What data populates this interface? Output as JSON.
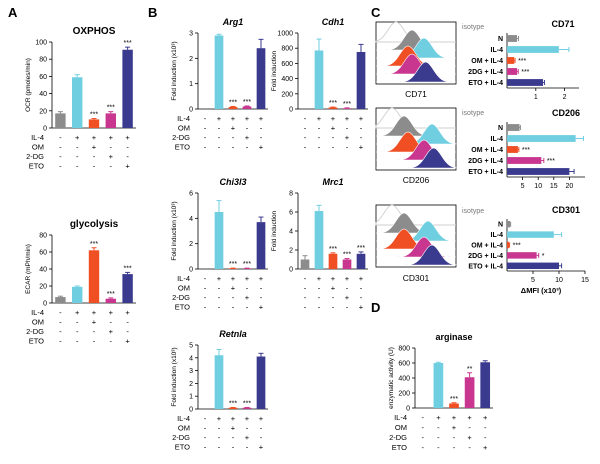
{
  "colors": {
    "gray": "#8c8c8c",
    "cyan": "#6fcfe0",
    "orange": "#f04e23",
    "magenta": "#c8368f",
    "navy": "#3a3a8f",
    "outline": "#cfcfcf"
  },
  "treatments": {
    "row_labels": [
      "IL-4",
      "OM",
      "2-DG",
      "ETO"
    ],
    "row_labels_alt": [
      "IL-4",
      "OM",
      "2DG",
      "ETO"
    ],
    "matrix": [
      [
        "-",
        "+",
        "+",
        "+",
        "+"
      ],
      [
        "-",
        "-",
        "+",
        "-",
        "-"
      ],
      [
        "-",
        "-",
        "-",
        "+",
        "-"
      ],
      [
        "-",
        "-",
        "-",
        "-",
        "+"
      ]
    ]
  },
  "panels": {
    "A": "A",
    "B": "B",
    "C": "C",
    "D": "D"
  },
  "hist_axis": {
    "CD71": "CD71",
    "CD206": "CD206",
    "CD301": "CD301"
  },
  "isotype": "isotype",
  "chart_data": [
    {
      "id": "oxphos",
      "type": "bar",
      "title": "OXPHOS",
      "ylabel": "OCR (pmoles/min)",
      "ylim": [
        0,
        100
      ],
      "yticks": [
        "0",
        "20",
        "40",
        "60",
        "80",
        "100"
      ],
      "values": [
        17,
        59,
        10,
        17,
        91
      ],
      "errors": [
        2,
        3,
        1,
        2,
        3
      ],
      "sig": [
        "",
        "",
        "***",
        "***",
        "***"
      ]
    },
    {
      "id": "glycolysis",
      "type": "bar",
      "title": "glycolysis",
      "ylabel": "ECAR (mPh/min)",
      "ylim": [
        0,
        80
      ],
      "yticks": [
        "0",
        "20",
        "40",
        "60",
        "80"
      ],
      "values": [
        7,
        19,
        62,
        5,
        34
      ],
      "errors": [
        1,
        1,
        3,
        1,
        2
      ],
      "sig": [
        "",
        "",
        "***",
        "***",
        "***"
      ]
    },
    {
      "id": "arg1",
      "type": "bar",
      "title": "Arg1",
      "ylabel": "Fold induction (x10³)",
      "ylim": [
        0,
        3
      ],
      "yticks": [
        "0",
        "1",
        "2",
        "3"
      ],
      "values": [
        0,
        2.9,
        0.08,
        0.1,
        2.4
      ],
      "errors": [
        0,
        0.05,
        0.02,
        0.02,
        0.35
      ],
      "sig": [
        "",
        "",
        "***",
        "***",
        ""
      ]
    },
    {
      "id": "cdh1",
      "type": "bar",
      "title": "Cdh1",
      "ylabel": "Fold induction",
      "ylim": [
        0,
        1000
      ],
      "yticks": [
        "0",
        "200",
        "400",
        "600",
        "800",
        "1000"
      ],
      "values": [
        0,
        770,
        20,
        10,
        750
      ],
      "errors": [
        0,
        150,
        5,
        5,
        100
      ],
      "sig": [
        "",
        "",
        "***",
        "***",
        ""
      ]
    },
    {
      "id": "chi3l3",
      "type": "bar",
      "title": "Chi3l3",
      "ylabel": "Fold induction (x10³)",
      "ylim": [
        0,
        6
      ],
      "yticks": [
        "0",
        "2",
        "4",
        "6"
      ],
      "values": [
        0,
        4.5,
        0.05,
        0.05,
        3.7
      ],
      "errors": [
        0,
        0.9,
        0.02,
        0.02,
        0.4
      ],
      "sig": [
        "",
        "",
        "***",
        "***",
        ""
      ]
    },
    {
      "id": "mrc1",
      "type": "bar",
      "title": "Mrc1",
      "ylabel": "Fold induction",
      "ylim": [
        0,
        8
      ],
      "yticks": [
        "0",
        "2",
        "4",
        "6",
        "8"
      ],
      "values": [
        1,
        6.1,
        1.6,
        1.0,
        1.6
      ],
      "errors": [
        0.4,
        0.6,
        0.1,
        0.1,
        0.2
      ],
      "sig": [
        "",
        "",
        "***",
        "***",
        "***"
      ]
    },
    {
      "id": "retnla",
      "type": "bar",
      "title": "Retnla",
      "ylabel": "Fold induction (x10³)",
      "ylim": [
        0,
        5
      ],
      "yticks": [
        "0",
        "1",
        "2",
        "3",
        "4",
        "5"
      ],
      "values": [
        0,
        4.2,
        0.1,
        0.1,
        4.1
      ],
      "errors": [
        0,
        0.45,
        0.02,
        0.02,
        0.25
      ],
      "sig": [
        "",
        "",
        "***",
        "***",
        ""
      ]
    },
    {
      "id": "cd71",
      "type": "bar",
      "orientation": "horizontal",
      "title": "CD71",
      "categories": [
        "N",
        "IL-4",
        "OM + IL-4",
        "2DG + IL-4",
        "ETO + IL-4"
      ],
      "xlim": [
        0,
        2.5
      ],
      "xticks": [
        "1",
        "2"
      ],
      "values": [
        0.35,
        1.8,
        0.25,
        0.35,
        1.25
      ],
      "errors": [
        0.05,
        0.35,
        0.03,
        0.04,
        0.05
      ],
      "sig": [
        "",
        "",
        "***",
        "***",
        ""
      ]
    },
    {
      "id": "cd206",
      "type": "bar",
      "orientation": "horizontal",
      "title": "CD206",
      "categories": [
        "N",
        "IL-4",
        "OM + IL-4",
        "2DG + IL-4",
        "ETO + IL-4"
      ],
      "xlim": [
        0,
        25
      ],
      "xticks": [
        "5",
        "10",
        "15",
        "20"
      ],
      "values": [
        4,
        22,
        3.5,
        11,
        20
      ],
      "errors": [
        0.3,
        2.5,
        0.3,
        0.8,
        1.5
      ],
      "sig": [
        "",
        "",
        "***",
        "***",
        ""
      ]
    },
    {
      "id": "cd301",
      "type": "bar",
      "orientation": "horizontal",
      "title": "CD301",
      "categories": [
        "N",
        "IL-4",
        "OM + IL-4",
        "2DG + IL-4",
        "ETO + IL-4"
      ],
      "xlim": [
        0,
        15
      ],
      "xticks": [
        "5",
        "10",
        "15"
      ],
      "xlabel": "ΔMFI (x10³)",
      "values": [
        0.6,
        9,
        0.4,
        5.7,
        10
      ],
      "errors": [
        0.1,
        1.5,
        0.1,
        0.4,
        0.5
      ],
      "sig": [
        "",
        "",
        "***",
        "*",
        ""
      ]
    },
    {
      "id": "arginase",
      "type": "bar",
      "title": "arginase",
      "ylabel": "enzymatic activity (U)",
      "ylim": [
        0,
        800
      ],
      "yticks": [
        "0",
        "200",
        "400",
        "600",
        "800"
      ],
      "values": [
        0,
        600,
        60,
        410,
        610
      ],
      "errors": [
        0,
        10,
        10,
        60,
        20
      ],
      "sig": [
        "",
        "",
        "***",
        "**",
        ""
      ]
    }
  ]
}
